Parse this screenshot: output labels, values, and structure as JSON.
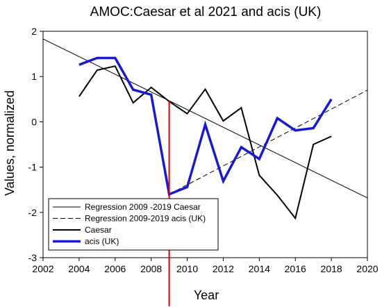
{
  "chart_data": {
    "type": "line",
    "title": "AMOC:Caesar et al 2021 and acis (UK)",
    "xlabel": "Year",
    "ylabel": "Values, normalized",
    "xlim": [
      2002,
      2020
    ],
    "ylim": [
      -3,
      2
    ],
    "x_ticks": [
      "2002",
      "2004",
      "2006",
      "2008",
      "2010",
      "2012",
      "2014",
      "2016",
      "2018",
      "2020"
    ],
    "y_ticks": [
      "2",
      "1",
      "0",
      "-1",
      "-2",
      "-3"
    ],
    "grid": false,
    "legend_position": "bottom-left",
    "series": [
      {
        "name": "Regression 2009 -2019 Caesar",
        "style": "solid-thin",
        "color": "#000000",
        "x": [
          2002,
          2020
        ],
        "y": [
          1.83,
          -1.68
        ]
      },
      {
        "name": "Regression 2009-2019 acis (UK)",
        "style": "dashed-thin",
        "color": "#000000",
        "x": [
          2009,
          2020
        ],
        "y": [
          -1.6,
          0.7
        ]
      },
      {
        "name": "Caesar",
        "style": "solid",
        "color": "#000000",
        "x": [
          2004,
          2005,
          2006,
          2007,
          2008,
          2009,
          2010,
          2011,
          2012,
          2013,
          2014,
          2015,
          2016,
          2017,
          2018
        ],
        "y": [
          0.56,
          1.14,
          1.23,
          0.42,
          0.76,
          0.45,
          0.18,
          0.72,
          0.02,
          0.31,
          -1.18,
          -1.62,
          -2.13,
          -0.5,
          -0.32
        ]
      },
      {
        "name": "acis (UK)",
        "style": "solid-thick",
        "color": "#1a1acc",
        "x": [
          2004,
          2005,
          2006,
          2007,
          2008,
          2009,
          2010,
          2011,
          2012,
          2013,
          2014,
          2015,
          2016,
          2017,
          2018
        ],
        "y": [
          1.26,
          1.41,
          1.41,
          0.71,
          0.6,
          -1.6,
          -1.44,
          -0.06,
          -1.31,
          -0.56,
          -0.82,
          0.08,
          -0.19,
          -0.14,
          0.5
        ]
      }
    ],
    "annotations": [
      {
        "type": "vertical-line",
        "x": 2009,
        "color": "#dd0000"
      }
    ]
  }
}
